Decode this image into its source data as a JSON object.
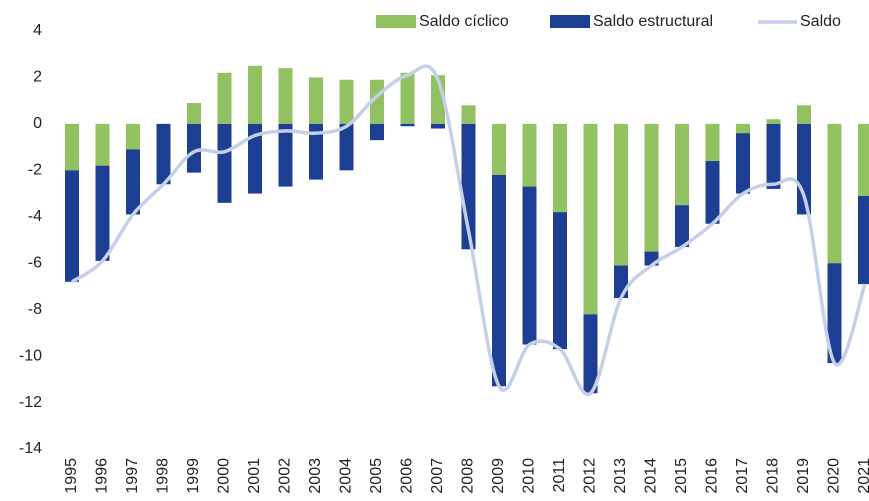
{
  "chart_data": {
    "type": "bar-line",
    "categories": [
      "1995",
      "1996",
      "1997",
      "1998",
      "1999",
      "2000",
      "2001",
      "2002",
      "2003",
      "2004",
      "2005",
      "2006",
      "2007",
      "2008",
      "2009",
      "2010",
      "2011",
      "2012",
      "2013",
      "2014",
      "2015",
      "2016",
      "2017",
      "2018",
      "2019",
      "2020",
      "2021"
    ],
    "series": [
      {
        "name": "Saldo cíclico",
        "color": "#92c162",
        "kind": "bar",
        "values": [
          -2.0,
          -1.8,
          -1.1,
          0,
          0.9,
          2.2,
          2.5,
          2.4,
          2.0,
          1.9,
          1.9,
          2.2,
          2.1,
          0.8,
          -2.2,
          -2.7,
          -3.8,
          -8.2,
          -6.1,
          -5.5,
          -3.5,
          -1.6,
          -0.4,
          0.2,
          0.8,
          -6.0,
          -3.1
        ]
      },
      {
        "name": "Saldo estructural",
        "color": "#1c3f94",
        "kind": "bar",
        "values": [
          -4.8,
          -4.1,
          -2.8,
          -2.6,
          -2.1,
          -3.4,
          -3.0,
          -2.7,
          -2.4,
          -2.0,
          -0.7,
          -0.1,
          -0.2,
          -5.4,
          -9.1,
          -6.8,
          -5.9,
          -3.4,
          -1.4,
          -0.6,
          -1.8,
          -2.7,
          -2.6,
          -2.8,
          -3.9,
          -4.3,
          -3.8
        ]
      },
      {
        "name": "Saldo",
        "color": "#c5cfe8",
        "kind": "line",
        "values": [
          -6.8,
          -5.9,
          -3.9,
          -2.6,
          -1.2,
          -1.2,
          -0.5,
          -0.3,
          -0.4,
          -0.1,
          1.2,
          2.1,
          1.9,
          -4.6,
          -11.3,
          -9.5,
          -9.7,
          -11.6,
          -7.5,
          -6.1,
          -5.3,
          -4.3,
          -3.0,
          -2.6,
          -3.1,
          -10.3,
          -6.9
        ]
      }
    ],
    "ylim": [
      -14,
      4
    ],
    "yticks": [
      -14,
      -12,
      -10,
      -8,
      -6,
      -4,
      -2,
      0,
      2,
      4
    ],
    "grid": false,
    "legend": "top-right"
  }
}
